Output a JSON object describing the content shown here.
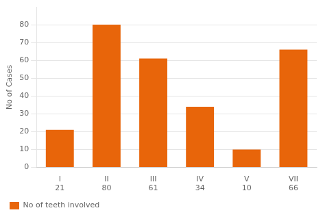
{
  "chart_data": {
    "type": "bar",
    "categories": [
      "I",
      "II",
      "III",
      "IV",
      "V",
      "VII"
    ],
    "values": [
      21,
      80,
      61,
      34,
      10,
      66
    ],
    "color": "#E8650A",
    "ylabel": "No of Cases",
    "ylim": [
      0,
      90
    ],
    "yticks": [
      0,
      10,
      20,
      30,
      40,
      50,
      60,
      70,
      80
    ],
    "grid": true,
    "legend": "bottom",
    "series_name": "No of teeth involved",
    "annotations": [
      "21",
      "80",
      "61",
      "34",
      "10",
      "66"
    ]
  }
}
